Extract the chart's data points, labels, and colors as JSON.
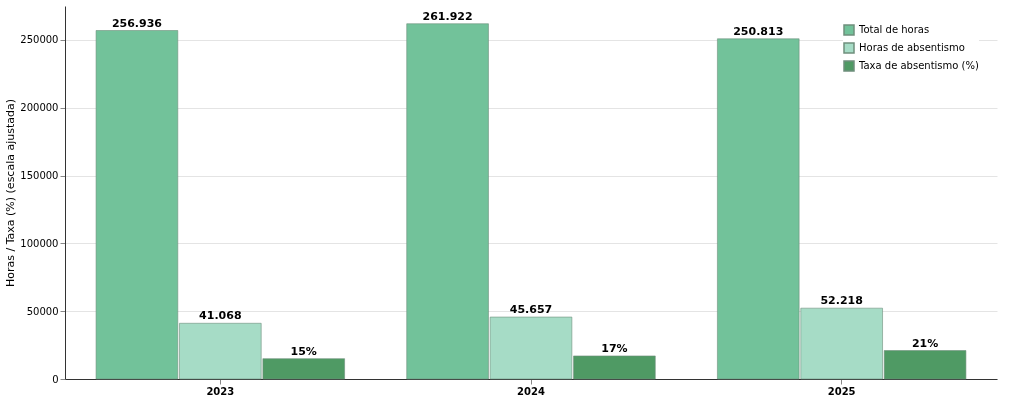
{
  "chart_data": {
    "type": "bar",
    "ylabel": "Horas / Taxa (%) (escala ajustada)",
    "categories": [
      "2023",
      "2024",
      "2025"
    ],
    "series": [
      {
        "name": "Total de horas",
        "color": "#72c29a",
        "values": [
          256936,
          261922,
          250813
        ],
        "value_labels": [
          "256.936",
          "261.922",
          "250.813"
        ]
      },
      {
        "name": "Horas de absentismo",
        "color": "#a6dcc6",
        "values": [
          41068,
          45657,
          52218
        ],
        "value_labels": [
          "41.068",
          "45.657",
          "52.218"
        ]
      },
      {
        "name": "Taxa de absentismo (%)",
        "color": "#4f9a64",
        "axis": "y2",
        "values": [
          15,
          17,
          21
        ],
        "value_labels": [
          "15%",
          "17%",
          "21%"
        ]
      }
    ],
    "ylim": [
      0,
      275000
    ],
    "yticks": [
      0,
      50000,
      100000,
      150000,
      200000,
      250000
    ],
    "y2lim": [
      0,
      275
    ],
    "grid": "y",
    "legend": "top right"
  }
}
